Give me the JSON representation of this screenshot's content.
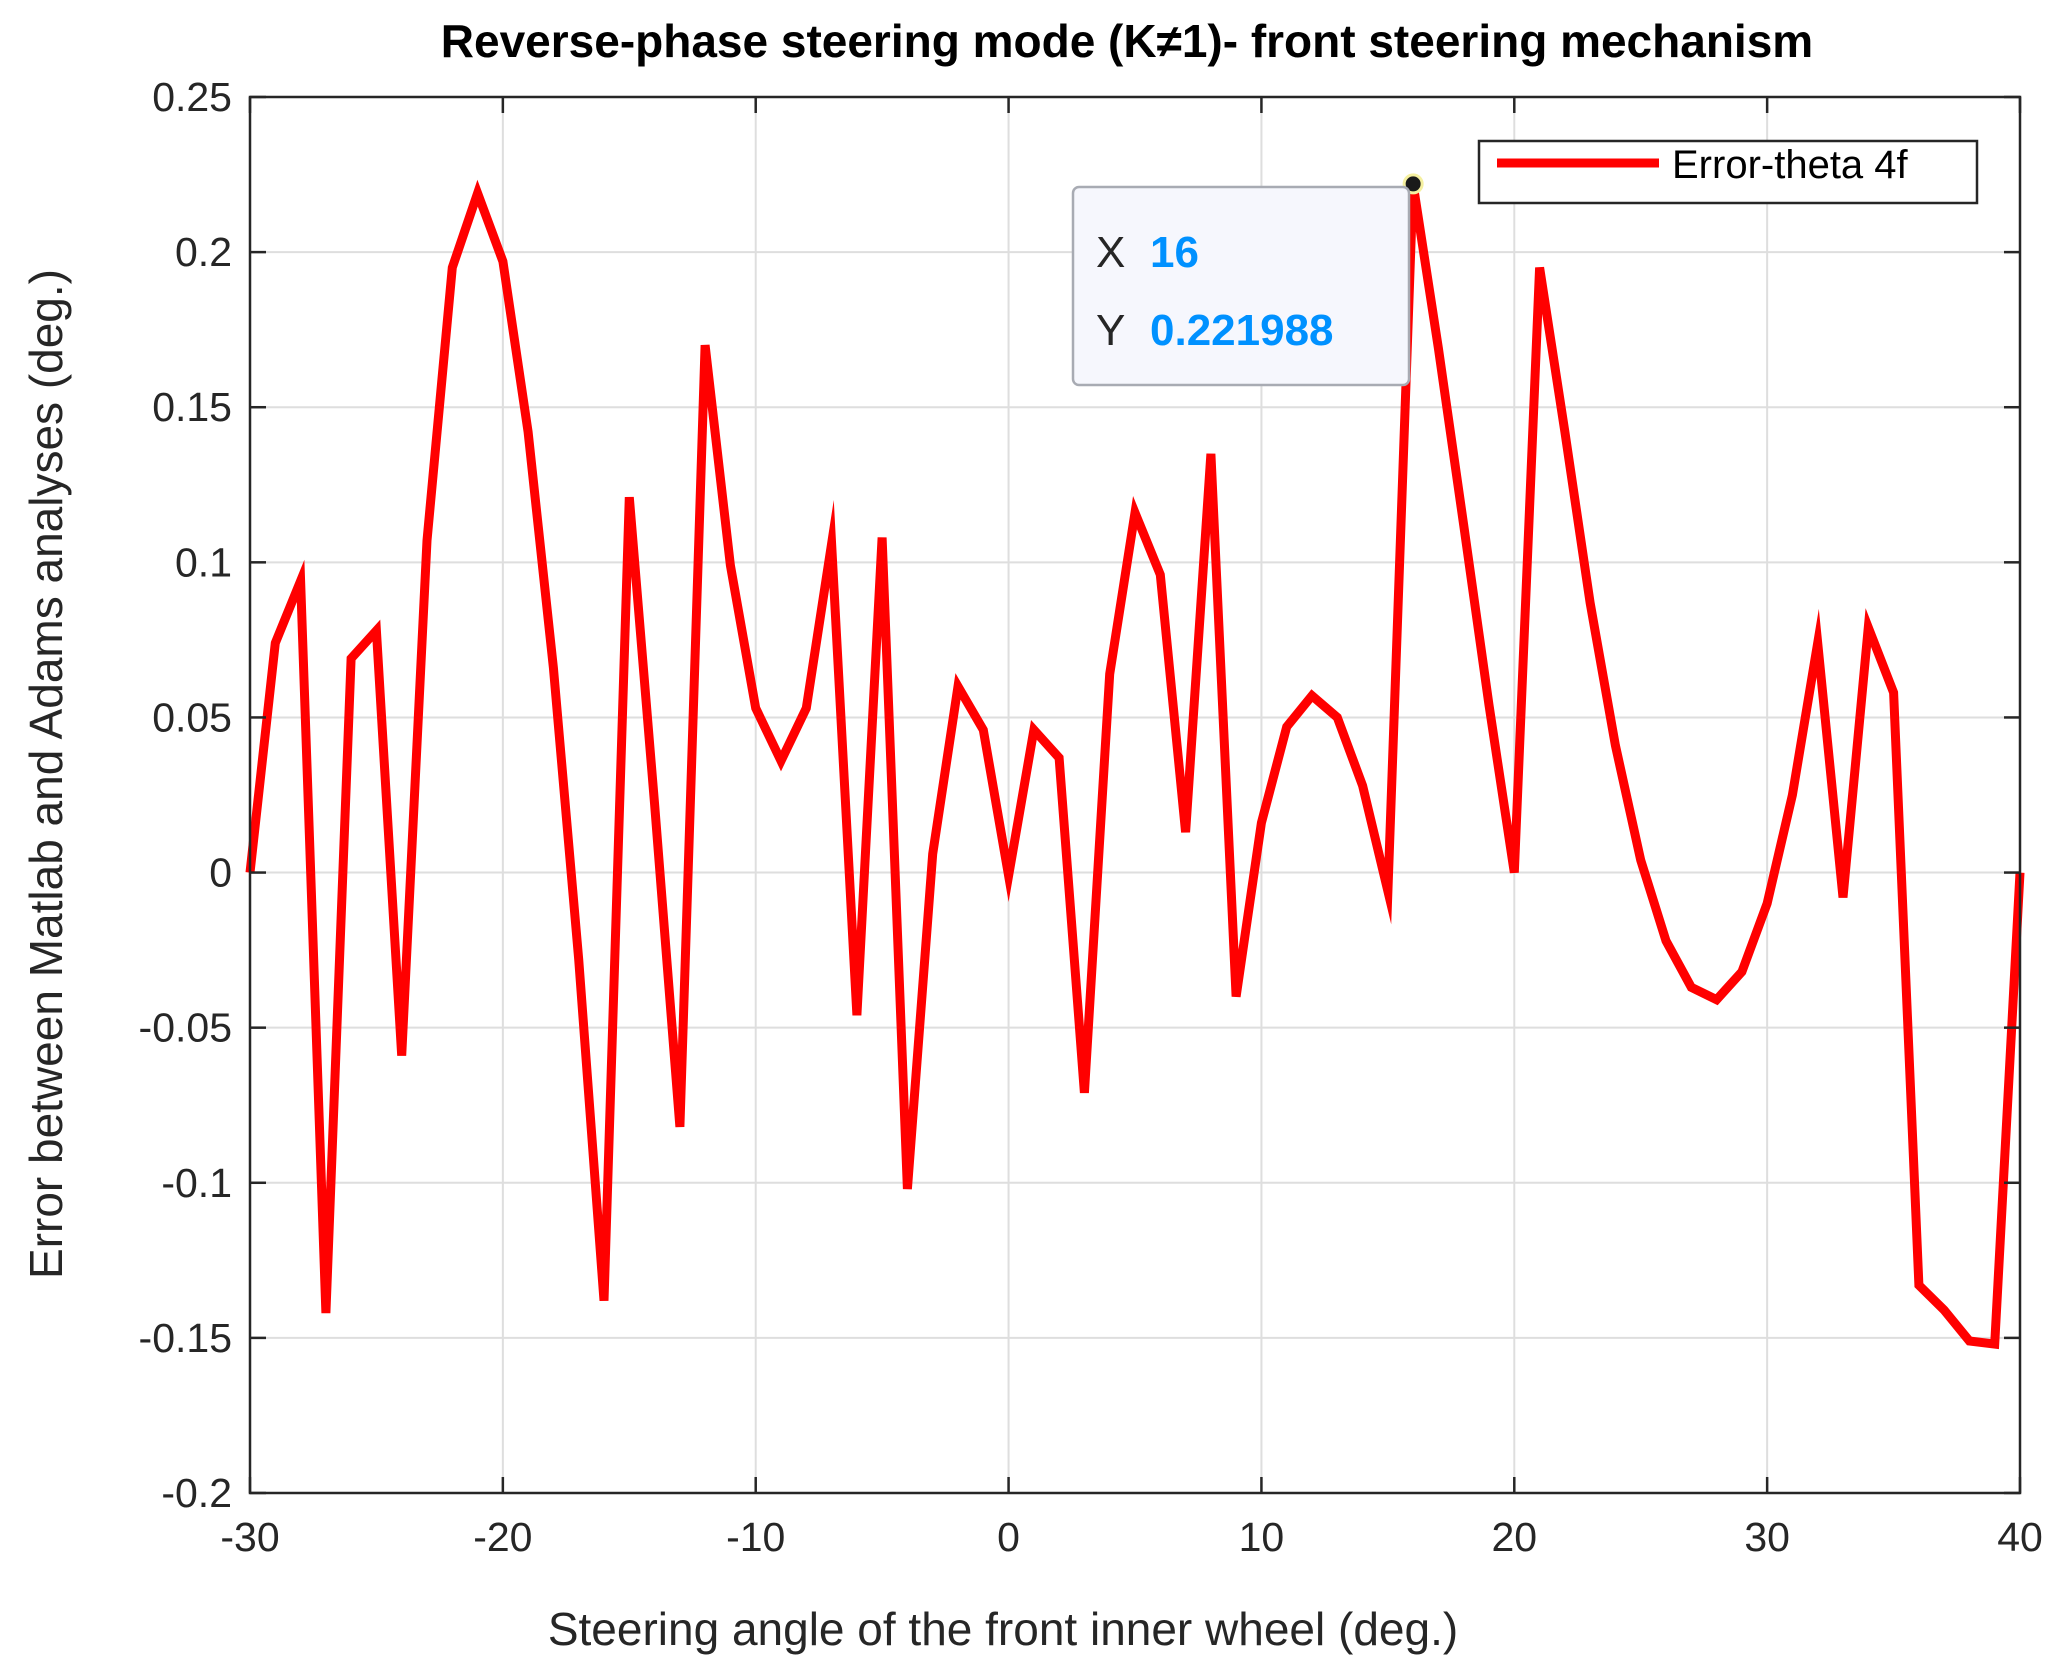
{
  "chart_data": {
    "type": "line",
    "title": "Reverse-phase steering mode (K≠1)- front steering mechanism",
    "xlabel": "Steering angle of the front inner wheel (deg.)",
    "ylabel": "Error between Matlab and Adams analyses (deg.)",
    "xlim": [
      -30,
      40
    ],
    "ylim": [
      -0.2,
      0.25
    ],
    "xticks": [
      -30,
      -20,
      -10,
      0,
      10,
      20,
      30,
      40
    ],
    "xtick_labels": [
      "-30",
      "-20",
      "-10",
      "0",
      "10",
      "20",
      "30",
      "40"
    ],
    "yticks": [
      -0.2,
      -0.15,
      -0.1,
      -0.05,
      0,
      0.05,
      0.1,
      0.15,
      0.2,
      0.25
    ],
    "ytick_labels": [
      "-0.2",
      "-0.15",
      "-0.1",
      "-0.05",
      "0",
      "0.05",
      "0.1",
      "0.15",
      "0.2",
      "0.25"
    ],
    "grid": true,
    "legend_position": "top-right",
    "series": [
      {
        "name": "Error-theta 4f",
        "color": "#ff0000",
        "x": [
          -30,
          -29,
          -28,
          -27,
          -26,
          -25,
          -24,
          -23,
          -22,
          -21,
          -20,
          -19,
          -18,
          -17,
          -16,
          -15,
          -14,
          -13,
          -12,
          -11,
          -10,
          -9,
          -8,
          -7,
          -6,
          -5,
          -4,
          -3,
          -2,
          -1,
          0,
          1,
          2,
          3,
          4,
          5,
          6,
          7,
          8,
          9,
          10,
          11,
          12,
          13,
          14,
          15,
          16,
          17,
          18,
          19,
          20,
          21,
          22,
          23,
          24,
          25,
          26,
          27,
          28,
          29,
          30,
          31,
          32,
          33,
          34,
          35,
          36,
          37,
          38,
          39,
          40
        ],
        "values": [
          0,
          0.074,
          0.094,
          -0.142,
          0.069,
          0.078,
          -0.059,
          0.107,
          0.195,
          0.219,
          0.197,
          0.142,
          0.066,
          -0.028,
          -0.138,
          0.121,
          0.022,
          -0.082,
          0.17,
          0.099,
          0.053,
          0.036,
          0.053,
          0.106,
          -0.046,
          0.108,
          -0.102,
          0.006,
          0.06,
          0.046,
          -0.001,
          0.046,
          0.037,
          -0.071,
          0.064,
          0.116,
          0.096,
          0.013,
          0.135,
          -0.04,
          0.016,
          0.047,
          0.057,
          0.05,
          0.028,
          -0.006,
          0.221988,
          0.169,
          0.112,
          0.054,
          0,
          0.195,
          0.142,
          0.087,
          0.041,
          0.004,
          -0.022,
          -0.037,
          -0.041,
          -0.032,
          -0.01,
          0.025,
          0.074,
          -0.008,
          0.079,
          0.058,
          -0.133,
          -0.141,
          -0.151,
          -0.152,
          0
        ]
      }
    ],
    "datatip": {
      "x": 16,
      "y": 0.221988,
      "x_key": "X",
      "y_key": "Y",
      "x_text": "16",
      "y_text": "0.221988",
      "value_color": "#0091ff"
    }
  }
}
